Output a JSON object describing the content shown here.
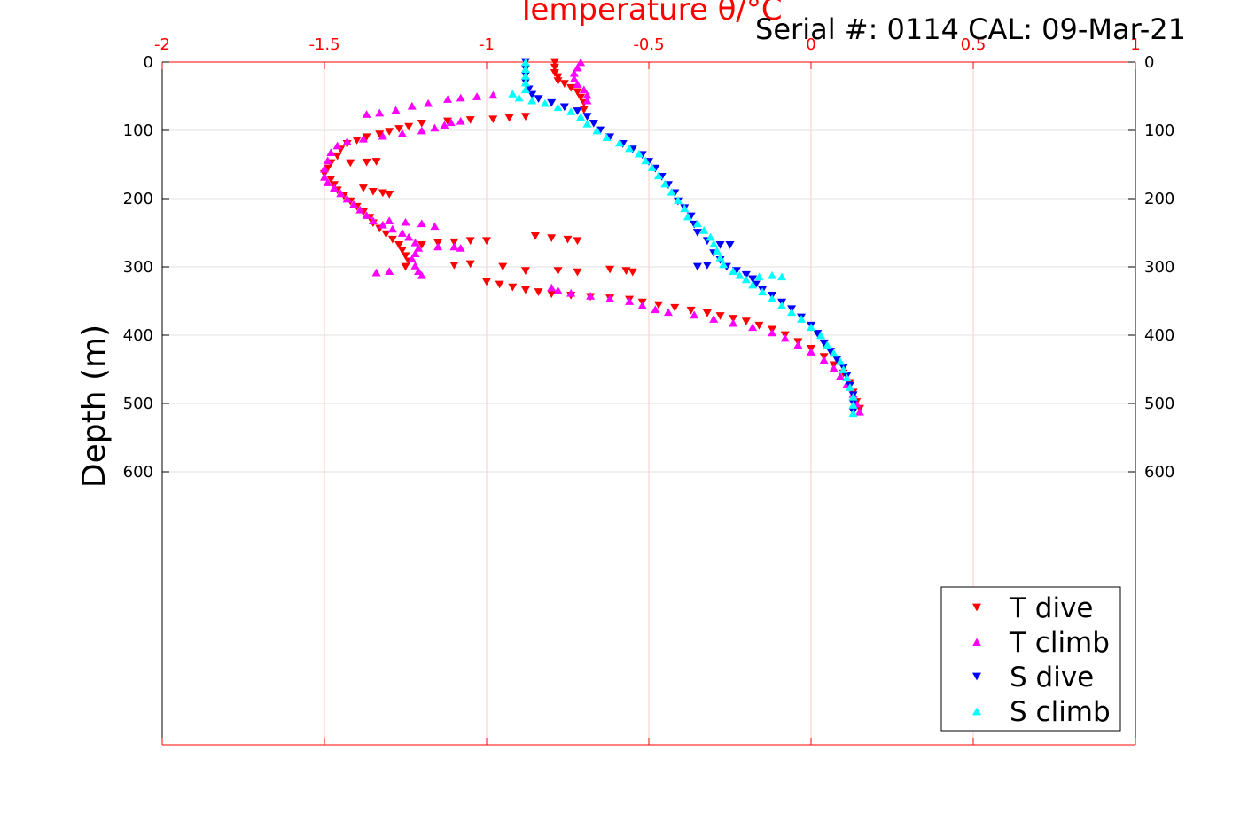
{
  "chart_data": {
    "type": "scatter",
    "title": "Temperature θ/°C",
    "annotation": "Serial #: 0114  CAL: 09-Mar-21",
    "xlabel": "Temperature θ/°C",
    "ylabel": "Depth (m)",
    "xlim": [
      -2,
      1
    ],
    "ylim": [
      0,
      1000
    ],
    "y_reversed": true,
    "x_ticks": [
      -2,
      -1.5,
      -1,
      -0.5,
      0,
      0.5,
      1
    ],
    "x_tick_labels": [
      "-2",
      "-1.5",
      "-1",
      "-0.5",
      "0",
      "0.5",
      "1"
    ],
    "y_ticks": [
      0,
      100,
      200,
      300,
      400,
      500,
      600
    ],
    "y_tick_labels": [
      "0",
      "100",
      "200",
      "300",
      "400",
      "500",
      "600"
    ],
    "grid": true,
    "legend_position": "bottom-right",
    "colors": {
      "axis_top": "#ff0000",
      "grid_x": "#ffc8c8",
      "grid_y": "#e0e0e0",
      "t_dive": "#ff0000",
      "t_climb": "#ff00ff",
      "s_dive": "#0000ff",
      "s_climb": "#00ffff"
    },
    "series": [
      {
        "name": "T dive",
        "marker": "triangle-down",
        "color": "#ff0000",
        "points": [
          [
            -0.79,
            0
          ],
          [
            -0.79,
            8
          ],
          [
            -0.79,
            16
          ],
          [
            -0.78,
            22
          ],
          [
            -0.78,
            28
          ],
          [
            -0.76,
            32
          ],
          [
            -0.74,
            38
          ],
          [
            -0.72,
            44
          ],
          [
            -0.71,
            52
          ],
          [
            -0.7,
            60
          ],
          [
            -0.7,
            70
          ],
          [
            -0.88,
            80
          ],
          [
            -0.93,
            82
          ],
          [
            -0.98,
            84
          ],
          [
            -1.05,
            85
          ],
          [
            -1.12,
            87
          ],
          [
            -1.2,
            90
          ],
          [
            -1.24,
            95
          ],
          [
            -1.27,
            98
          ],
          [
            -1.3,
            102
          ],
          [
            -1.33,
            106
          ],
          [
            -1.37,
            110
          ],
          [
            -1.4,
            115
          ],
          [
            -1.43,
            120
          ],
          [
            -1.45,
            128
          ],
          [
            -1.46,
            138
          ],
          [
            -1.48,
            148
          ],
          [
            -1.49,
            156
          ],
          [
            -1.5,
            164
          ],
          [
            -1.48,
            172
          ],
          [
            -1.47,
            180
          ],
          [
            -1.42,
            148
          ],
          [
            -1.37,
            147
          ],
          [
            -1.34,
            146
          ],
          [
            -1.46,
            188
          ],
          [
            -1.44,
            196
          ],
          [
            -1.42,
            204
          ],
          [
            -1.4,
            212
          ],
          [
            -1.38,
            220
          ],
          [
            -1.36,
            228
          ],
          [
            -1.35,
            236
          ],
          [
            -1.33,
            244
          ],
          [
            -1.31,
            252
          ],
          [
            -1.29,
            260
          ],
          [
            -1.27,
            268
          ],
          [
            -1.26,
            276
          ],
          [
            -1.25,
            284
          ],
          [
            -1.24,
            292
          ],
          [
            -1.25,
            300
          ],
          [
            -1.38,
            185
          ],
          [
            -1.35,
            190
          ],
          [
            -1.32,
            192
          ],
          [
            -1.3,
            194
          ],
          [
            -1.2,
            268
          ],
          [
            -1.15,
            265
          ],
          [
            -1.1,
            264
          ],
          [
            -1.05,
            262
          ],
          [
            -1.0,
            262
          ],
          [
            -0.85,
            255
          ],
          [
            -0.8,
            258
          ],
          [
            -0.75,
            260
          ],
          [
            -0.72,
            262
          ],
          [
            -1.05,
            296
          ],
          [
            -1.1,
            298
          ],
          [
            -0.95,
            300
          ],
          [
            -0.88,
            306
          ],
          [
            -0.78,
            306
          ],
          [
            -0.72,
            308
          ],
          [
            -0.62,
            304
          ],
          [
            -0.57,
            306
          ],
          [
            -0.55,
            308
          ],
          [
            -1.0,
            322
          ],
          [
            -0.96,
            326
          ],
          [
            -0.92,
            330
          ],
          [
            -0.88,
            334
          ],
          [
            -0.84,
            337
          ],
          [
            -0.8,
            340
          ],
          [
            -0.74,
            342
          ],
          [
            -0.68,
            344
          ],
          [
            -0.62,
            346
          ],
          [
            -0.56,
            348
          ],
          [
            -0.52,
            352
          ],
          [
            -0.47,
            356
          ],
          [
            -0.42,
            360
          ],
          [
            -0.37,
            364
          ],
          [
            -0.32,
            368
          ],
          [
            -0.28,
            372
          ],
          [
            -0.24,
            376
          ],
          [
            -0.2,
            380
          ],
          [
            -0.16,
            386
          ],
          [
            -0.12,
            392
          ],
          [
            -0.08,
            400
          ],
          [
            -0.04,
            410
          ],
          [
            0.0,
            420
          ],
          [
            0.04,
            432
          ],
          [
            0.07,
            444
          ],
          [
            0.1,
            456
          ],
          [
            0.12,
            470
          ],
          [
            0.13,
            484
          ],
          [
            0.14,
            498
          ],
          [
            0.15,
            508
          ]
        ]
      },
      {
        "name": "T climb",
        "marker": "triangle-up",
        "color": "#ff00ff",
        "points": [
          [
            -0.71,
            0
          ],
          [
            -0.72,
            8
          ],
          [
            -0.73,
            16
          ],
          [
            -0.73,
            24
          ],
          [
            -0.72,
            32
          ],
          [
            -0.7,
            40
          ],
          [
            -0.69,
            48
          ],
          [
            -0.69,
            56
          ],
          [
            -0.98,
            48
          ],
          [
            -1.03,
            50
          ],
          [
            -1.08,
            52
          ],
          [
            -1.12,
            54
          ],
          [
            -1.18,
            60
          ],
          [
            -1.23,
            64
          ],
          [
            -1.28,
            70
          ],
          [
            -1.33,
            74
          ],
          [
            -1.37,
            76
          ],
          [
            -1.08,
            86
          ],
          [
            -1.11,
            88
          ],
          [
            -1.13,
            92
          ],
          [
            -1.16,
            96
          ],
          [
            -1.2,
            100
          ],
          [
            -1.26,
            104
          ],
          [
            -1.32,
            108
          ],
          [
            -1.38,
            112
          ],
          [
            -1.43,
            116
          ],
          [
            -1.46,
            122
          ],
          [
            -1.48,
            132
          ],
          [
            -1.49,
            144
          ],
          [
            -1.5,
            156
          ],
          [
            -1.5,
            168
          ],
          [
            -1.49,
            176
          ],
          [
            -1.47,
            184
          ],
          [
            -1.45,
            192
          ],
          [
            -1.43,
            200
          ],
          [
            -1.41,
            208
          ],
          [
            -1.39,
            216
          ],
          [
            -1.37,
            224
          ],
          [
            -1.35,
            232
          ],
          [
            -1.32,
            238
          ],
          [
            -1.29,
            244
          ],
          [
            -1.26,
            250
          ],
          [
            -1.24,
            256
          ],
          [
            -1.22,
            264
          ],
          [
            -1.21,
            272
          ],
          [
            -1.22,
            280
          ],
          [
            -1.23,
            288
          ],
          [
            -1.22,
            298
          ],
          [
            -1.21,
            306
          ],
          [
            -1.2,
            312
          ],
          [
            -1.3,
            232
          ],
          [
            -1.25,
            234
          ],
          [
            -1.2,
            236
          ],
          [
            -1.16,
            240
          ],
          [
            -1.3,
            306
          ],
          [
            -1.34,
            308
          ],
          [
            -1.15,
            270
          ],
          [
            -1.1,
            270
          ],
          [
            -1.08,
            272
          ],
          [
            -0.8,
            330
          ],
          [
            -0.78,
            334
          ],
          [
            -0.74,
            338
          ],
          [
            -0.68,
            342
          ],
          [
            -0.62,
            346
          ],
          [
            -0.56,
            350
          ],
          [
            -0.52,
            356
          ],
          [
            -0.48,
            362
          ],
          [
            -0.44,
            366
          ],
          [
            -0.36,
            370
          ],
          [
            -0.3,
            376
          ],
          [
            -0.24,
            382
          ],
          [
            -0.18,
            388
          ],
          [
            -0.12,
            396
          ],
          [
            -0.08,
            404
          ],
          [
            -0.04,
            414
          ],
          [
            0.0,
            424
          ],
          [
            0.04,
            436
          ],
          [
            0.07,
            448
          ],
          [
            0.09,
            460
          ],
          [
            0.11,
            472
          ],
          [
            0.13,
            486
          ],
          [
            0.14,
            500
          ],
          [
            0.15,
            512
          ]
        ]
      },
      {
        "name": "S dive",
        "marker": "triangle-down",
        "color": "#0000ff",
        "points": [
          [
            -0.88,
            0
          ],
          [
            -0.88,
            10
          ],
          [
            -0.88,
            20
          ],
          [
            -0.88,
            30
          ],
          [
            -0.87,
            40
          ],
          [
            -0.86,
            48
          ],
          [
            -0.84,
            54
          ],
          [
            -0.8,
            60
          ],
          [
            -0.76,
            66
          ],
          [
            -0.72,
            72
          ],
          [
            -0.69,
            80
          ],
          [
            -0.67,
            90
          ],
          [
            -0.65,
            100
          ],
          [
            -0.62,
            110
          ],
          [
            -0.58,
            120
          ],
          [
            -0.55,
            128
          ],
          [
            -0.52,
            136
          ],
          [
            -0.5,
            146
          ],
          [
            -0.48,
            156
          ],
          [
            -0.46,
            168
          ],
          [
            -0.44,
            180
          ],
          [
            -0.42,
            192
          ],
          [
            -0.41,
            204
          ],
          [
            -0.39,
            214
          ],
          [
            -0.37,
            226
          ],
          [
            -0.36,
            238
          ],
          [
            -0.35,
            250
          ],
          [
            -0.32,
            262
          ],
          [
            -0.28,
            268
          ],
          [
            -0.25,
            268
          ],
          [
            -0.3,
            280
          ],
          [
            -0.28,
            290
          ],
          [
            -0.26,
            300
          ],
          [
            -0.32,
            298
          ],
          [
            -0.35,
            300
          ],
          [
            -0.23,
            306
          ],
          [
            -0.2,
            312
          ],
          [
            -0.18,
            318
          ],
          [
            -0.17,
            326
          ],
          [
            -0.15,
            334
          ],
          [
            -0.12,
            342
          ],
          [
            -0.09,
            352
          ],
          [
            -0.06,
            362
          ],
          [
            -0.03,
            374
          ],
          [
            0.0,
            386
          ],
          [
            0.02,
            398
          ],
          [
            0.04,
            412
          ],
          [
            0.06,
            424
          ],
          [
            0.08,
            436
          ],
          [
            0.1,
            448
          ],
          [
            0.11,
            460
          ],
          [
            0.12,
            474
          ],
          [
            0.13,
            488
          ],
          [
            0.13,
            500
          ],
          [
            0.13,
            512
          ]
        ]
      },
      {
        "name": "S climb",
        "marker": "triangle-up",
        "color": "#00ffff",
        "points": [
          [
            -0.88,
            0
          ],
          [
            -0.88,
            10
          ],
          [
            -0.88,
            20
          ],
          [
            -0.88,
            30
          ],
          [
            -0.88,
            40
          ],
          [
            -0.92,
            46
          ],
          [
            -0.9,
            52
          ],
          [
            -0.86,
            56
          ],
          [
            -0.82,
            60
          ],
          [
            -0.78,
            66
          ],
          [
            -0.74,
            72
          ],
          [
            -0.71,
            80
          ],
          [
            -0.69,
            90
          ],
          [
            -0.66,
            100
          ],
          [
            -0.63,
            110
          ],
          [
            -0.59,
            118
          ],
          [
            -0.56,
            126
          ],
          [
            -0.53,
            134
          ],
          [
            -0.51,
            144
          ],
          [
            -0.49,
            154
          ],
          [
            -0.47,
            166
          ],
          [
            -0.45,
            178
          ],
          [
            -0.43,
            190
          ],
          [
            -0.41,
            202
          ],
          [
            -0.39,
            214
          ],
          [
            -0.38,
            226
          ],
          [
            -0.35,
            236
          ],
          [
            -0.33,
            246
          ],
          [
            -0.31,
            256
          ],
          [
            -0.3,
            266
          ],
          [
            -0.29,
            276
          ],
          [
            -0.28,
            286
          ],
          [
            -0.27,
            296
          ],
          [
            -0.24,
            306
          ],
          [
            -0.22,
            312
          ],
          [
            -0.2,
            318
          ],
          [
            -0.16,
            314
          ],
          [
            -0.12,
            312
          ],
          [
            -0.09,
            314
          ],
          [
            -0.18,
            326
          ],
          [
            -0.15,
            336
          ],
          [
            -0.12,
            346
          ],
          [
            -0.09,
            356
          ],
          [
            -0.06,
            366
          ],
          [
            -0.03,
            376
          ],
          [
            0.0,
            388
          ],
          [
            0.03,
            400
          ],
          [
            0.05,
            414
          ],
          [
            0.07,
            426
          ],
          [
            0.09,
            438
          ],
          [
            0.1,
            450
          ],
          [
            0.11,
            462
          ],
          [
            0.12,
            476
          ],
          [
            0.13,
            490
          ],
          [
            0.13,
            502
          ],
          [
            0.13,
            514
          ]
        ]
      }
    ]
  }
}
